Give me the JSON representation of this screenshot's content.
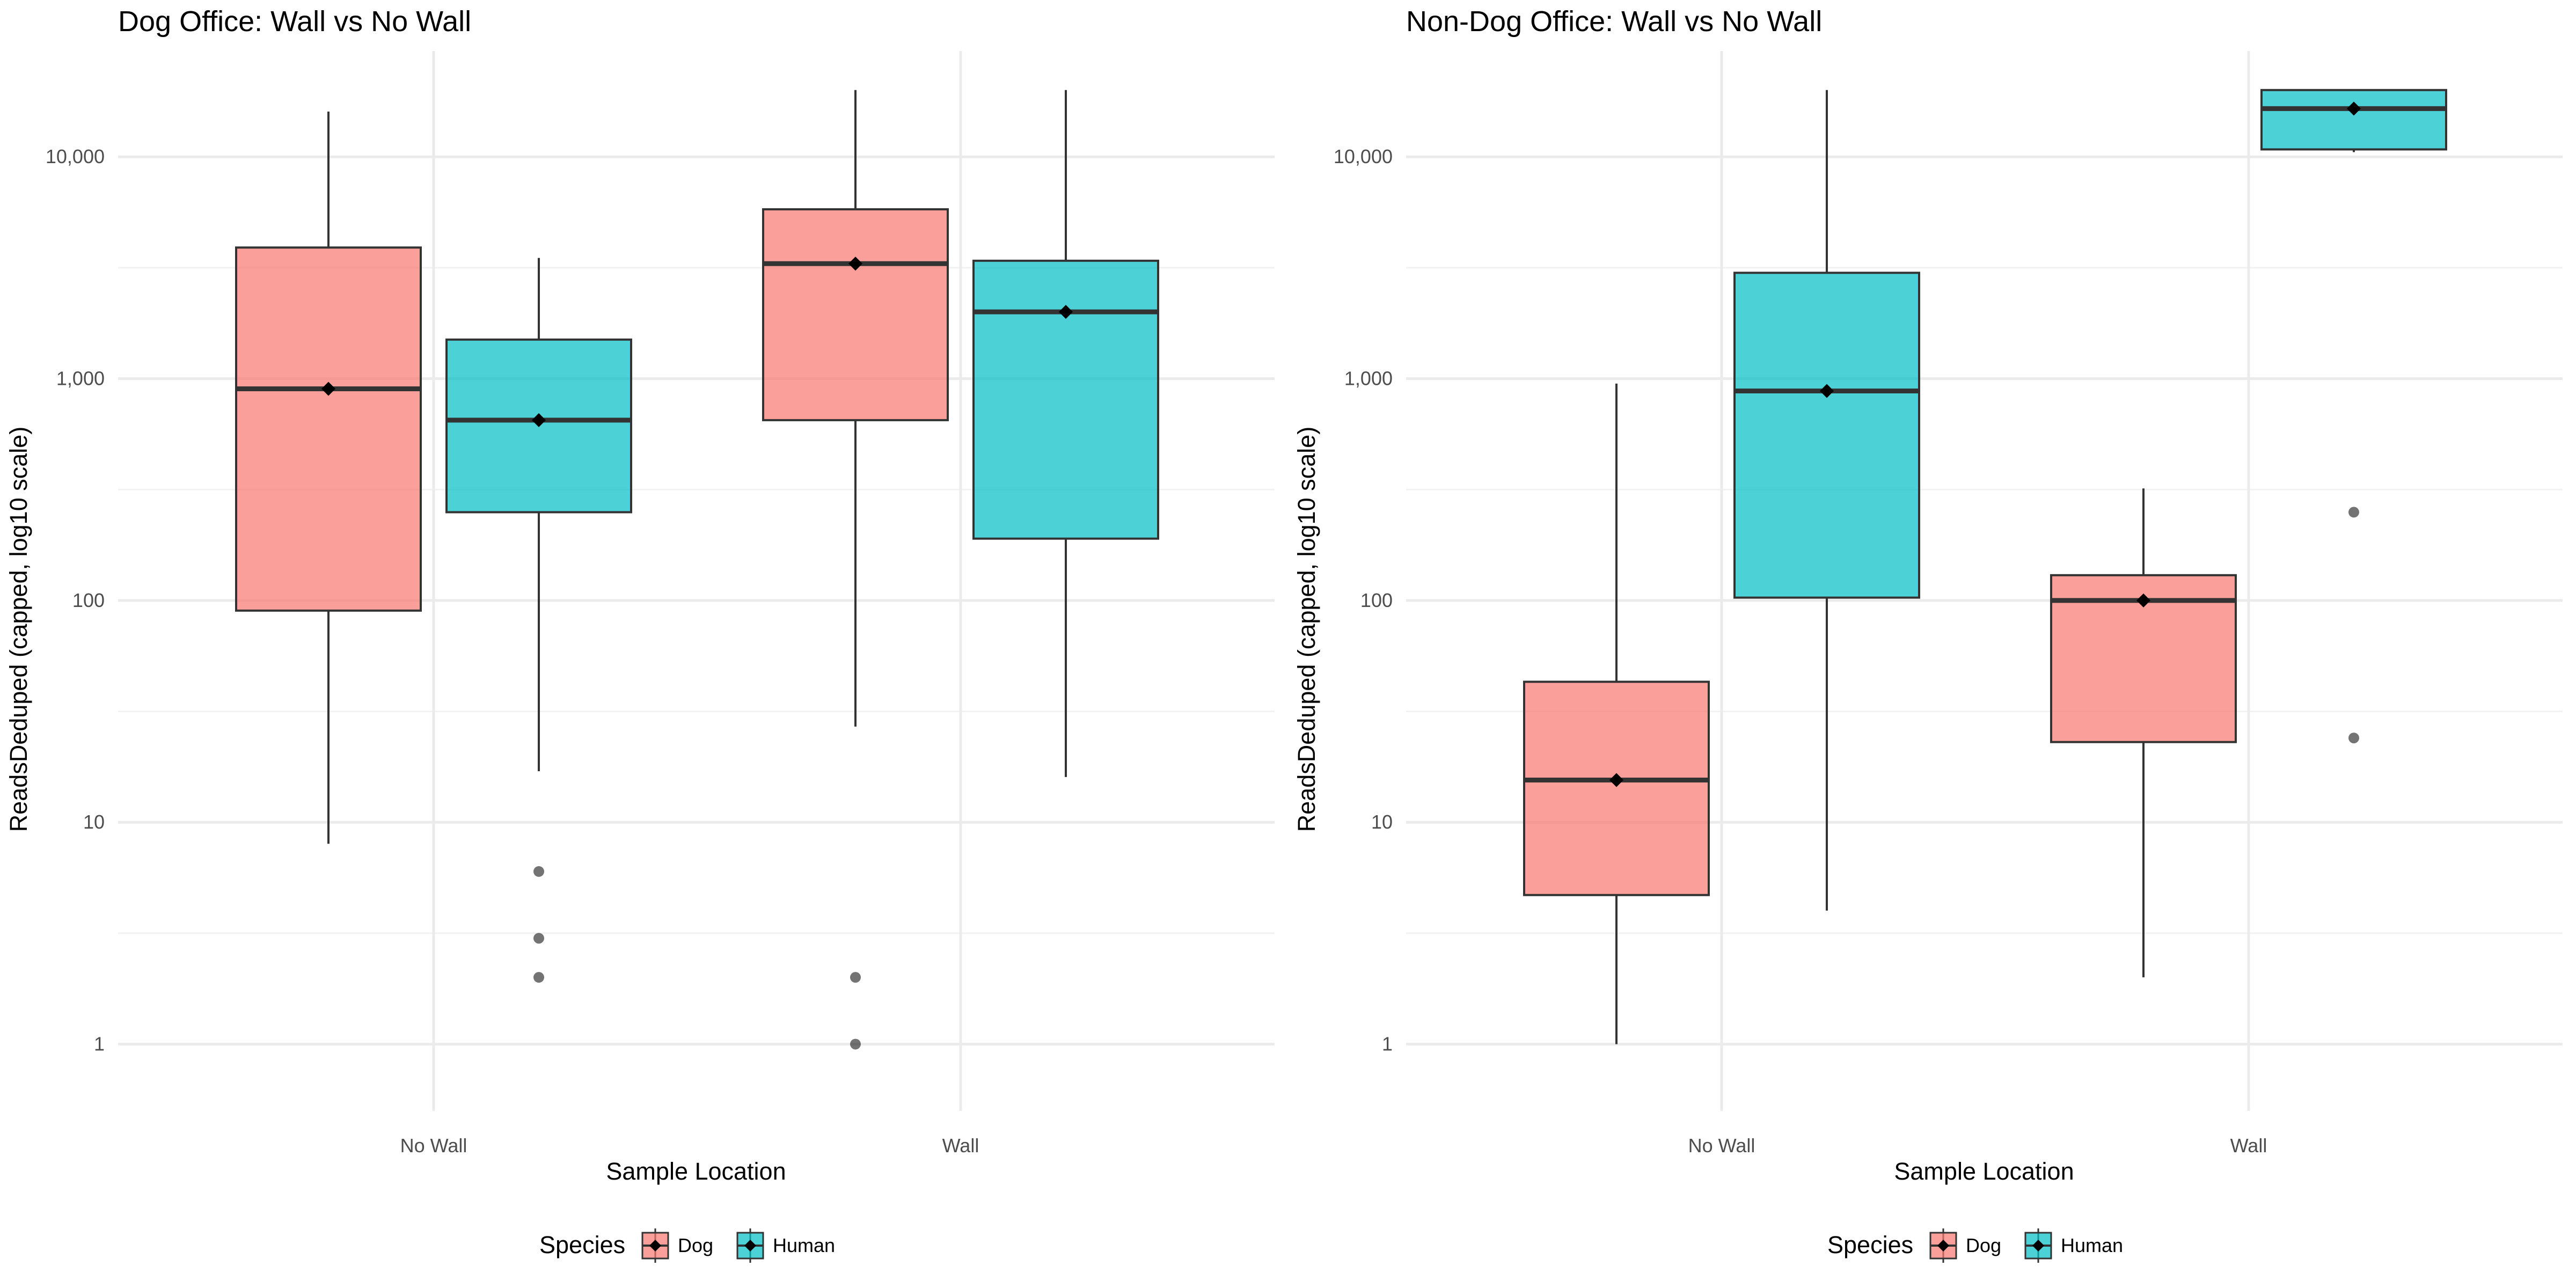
{
  "legend": {
    "title": "Species",
    "entries": [
      {
        "label": "Dog",
        "color": "#F8766D"
      },
      {
        "label": "Human",
        "color": "#00BFC4"
      }
    ]
  },
  "chart_data": [
    {
      "type": "box",
      "title": "Dog Office: Wall vs No Wall",
      "xlabel": "Sample Location",
      "ylabel": "ReadsDeduped (capped, log10 scale)",
      "y_scale": "log10",
      "ylim": [
        0.5,
        30000
      ],
      "y_ticks": [
        1,
        10,
        100,
        1000,
        10000
      ],
      "y_tick_labels": [
        "1",
        "10",
        "100",
        "1,000",
        "10,000"
      ],
      "categories": [
        "No Wall",
        "Wall"
      ],
      "grid": true,
      "legend_position": "bottom",
      "series": [
        {
          "name": "Dog",
          "color": "#F8766D",
          "boxes": [
            {
              "category": "No Wall",
              "min": 8,
              "q1": 90,
              "median": 900,
              "q3": 3900,
              "max": 16000,
              "mean": 900,
              "outliers": []
            },
            {
              "category": "Wall",
              "min": 27,
              "q1": 650,
              "median": 3300,
              "q3": 5800,
              "max": 20000,
              "mean": 3300,
              "outliers": [
                2,
                1
              ]
            }
          ]
        },
        {
          "name": "Human",
          "color": "#00BFC4",
          "boxes": [
            {
              "category": "No Wall",
              "min": 17,
              "q1": 250,
              "median": 650,
              "q3": 1500,
              "max": 3500,
              "mean": 650,
              "outliers": [
                6,
                3,
                2
              ]
            },
            {
              "category": "Wall",
              "min": 16,
              "q1": 190,
              "median": 2000,
              "q3": 3400,
              "max": 20000,
              "mean": 2000,
              "outliers": []
            }
          ]
        }
      ]
    },
    {
      "type": "box",
      "title": "Non-Dog Office: Wall vs No Wall",
      "xlabel": "Sample Location",
      "ylabel": "ReadsDeduped (capped, log10 scale)",
      "y_scale": "log10",
      "ylim": [
        0.5,
        30000
      ],
      "y_ticks": [
        1,
        10,
        100,
        1000,
        10000
      ],
      "y_tick_labels": [
        "1",
        "10",
        "100",
        "1,000",
        "10,000"
      ],
      "categories": [
        "No Wall",
        "Wall"
      ],
      "grid": true,
      "legend_position": "bottom",
      "series": [
        {
          "name": "Dog",
          "color": "#F8766D",
          "boxes": [
            {
              "category": "No Wall",
              "min": 1,
              "q1": 4.7,
              "median": 15.5,
              "q3": 43,
              "max": 950,
              "mean": 15.5,
              "outliers": []
            },
            {
              "category": "Wall",
              "min": 2,
              "q1": 23,
              "median": 100,
              "q3": 130,
              "max": 320,
              "mean": 100,
              "outliers": []
            }
          ]
        },
        {
          "name": "Human",
          "color": "#00BFC4",
          "boxes": [
            {
              "category": "No Wall",
              "min": 4,
              "q1": 103,
              "median": 880,
              "q3": 3000,
              "max": 20000,
              "mean": 880,
              "outliers": []
            },
            {
              "category": "Wall",
              "min": 10500,
              "q1": 10800,
              "median": 16500,
              "q3": 20000,
              "max": 20000,
              "mean": 16500,
              "outliers": [
                250,
                24
              ]
            }
          ]
        }
      ]
    }
  ]
}
